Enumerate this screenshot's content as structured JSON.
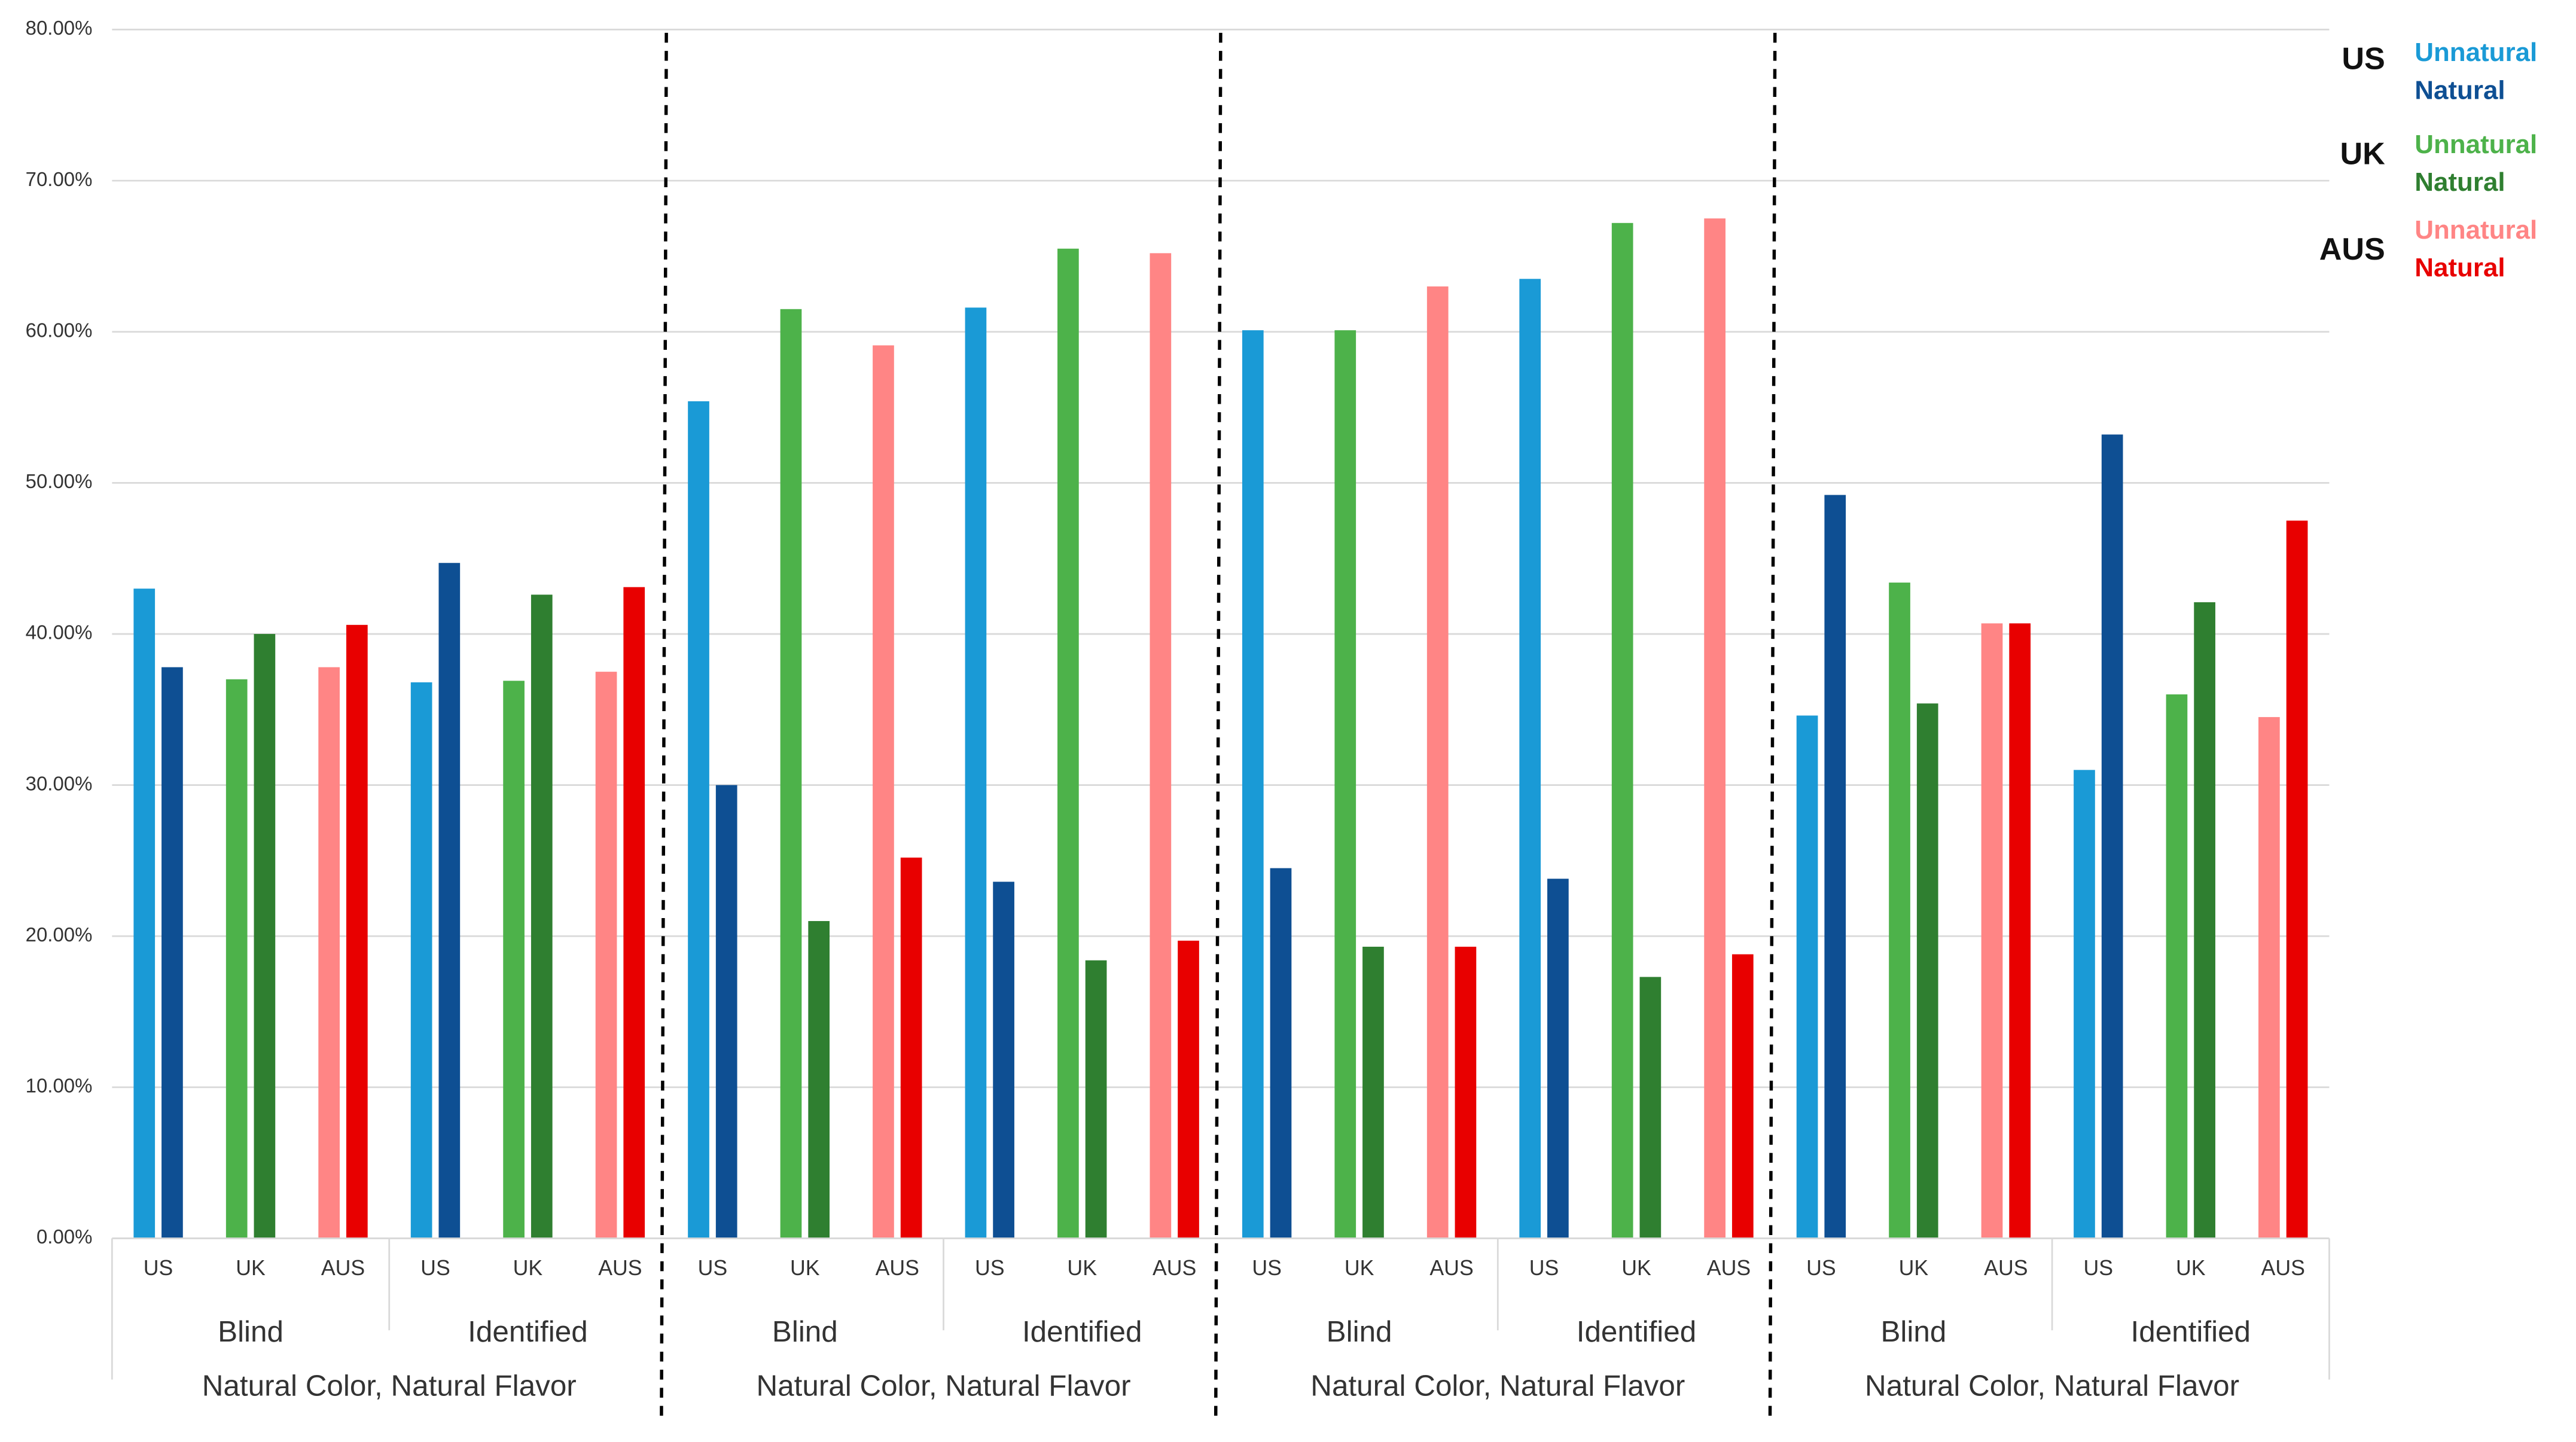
{
  "chart_data": {
    "type": "bar",
    "ylim": [
      0,
      80
    ],
    "yticks": [
      {
        "value": 0,
        "label": "0.00%"
      },
      {
        "value": 10,
        "label": "10.00%"
      },
      {
        "value": 20,
        "label": "20.00%"
      },
      {
        "value": 30,
        "label": "30.00%"
      },
      {
        "value": 40,
        "label": "40.00%"
      },
      {
        "value": 50,
        "label": "50.00%"
      },
      {
        "value": 60,
        "label": "60.00%"
      },
      {
        "value": 70,
        "label": "70.00%"
      },
      {
        "value": 80,
        "label": "80.00%"
      }
    ],
    "grid": true,
    "categories": [
      "US",
      "UK",
      "AUS",
      "US",
      "UK",
      "AUS",
      "US",
      "UK",
      "AUS",
      "US",
      "UK",
      "AUS",
      "US",
      "UK",
      "AUS",
      "US",
      "UK",
      "AUS",
      "US",
      "UK",
      "AUS",
      "US",
      "UK",
      "AUS"
    ],
    "subgroups": [
      "Blind",
      "Identified",
      "Blind",
      "Identified",
      "Blind",
      "Identified",
      "Blind",
      "Identified"
    ],
    "groups": [
      "Natural Color, Natural Flavor",
      "Natural Color, Natural Flavor",
      "Natural Color, Natural Flavor",
      "Natural Color, Natural Flavor"
    ],
    "series": [
      {
        "name": "Unnatural",
        "values": [
          43.0,
          37.0,
          37.8,
          36.8,
          36.9,
          37.5,
          55.4,
          61.5,
          59.1,
          61.6,
          65.5,
          65.2,
          60.1,
          60.1,
          63.0,
          63.5,
          67.2,
          67.5,
          34.6,
          43.4,
          40.7,
          31.0,
          36.0,
          34.5
        ]
      },
      {
        "name": "Natural",
        "values": [
          37.8,
          40.0,
          40.6,
          44.7,
          42.6,
          43.1,
          30.0,
          21.0,
          25.2,
          23.6,
          18.4,
          19.7,
          24.5,
          19.3,
          19.3,
          23.8,
          17.3,
          18.8,
          49.2,
          35.4,
          40.7,
          53.2,
          42.1,
          47.5
        ]
      }
    ],
    "legend": [
      {
        "label": "US",
        "colors": [
          "#1a9ad6",
          "#0e4f93"
        ]
      },
      {
        "label": "UK",
        "colors": [
          "#4db24a",
          "#2f7f30"
        ]
      },
      {
        "label": "AUS",
        "colors": [
          "#ff8585",
          "#e80000"
        ]
      }
    ]
  }
}
